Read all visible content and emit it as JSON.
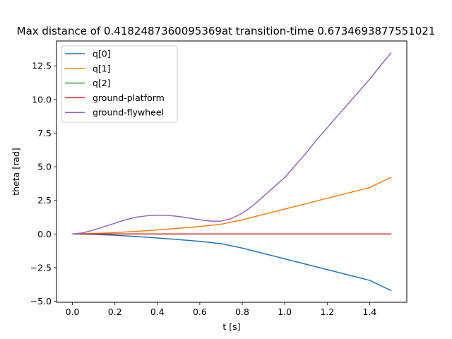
{
  "chart_data": {
    "type": "line",
    "title": "Max distance of 0.4182487360095369at transition-time 0.6734693877551021",
    "xlabel": "t [s]",
    "ylabel": "theta [rad]",
    "xlim": [
      -0.075,
      1.575
    ],
    "ylim": [
      -5.08,
      14.35
    ],
    "xticks": [
      0.0,
      0.2,
      0.4,
      0.6,
      0.8,
      1.0,
      1.2,
      1.4
    ],
    "xtick_labels": [
      "0.0",
      "0.2",
      "0.4",
      "0.6",
      "0.8",
      "1.0",
      "1.2",
      "1.4"
    ],
    "yticks": [
      -5.0,
      -2.5,
      0.0,
      2.5,
      5.0,
      7.5,
      10.0,
      12.5
    ],
    "ytick_labels": [
      "−5.0",
      "−2.5",
      "0.0",
      "2.5",
      "5.0",
      "7.5",
      "10.0",
      "12.5"
    ],
    "grid": false,
    "legend_position": "top-left",
    "series": [
      {
        "name": "q[0]",
        "color": "#1f77b4",
        "x": [
          0.0,
          0.1,
          0.2,
          0.3,
          0.4,
          0.5,
          0.6,
          0.7,
          0.8,
          0.9,
          1.0,
          1.1,
          1.2,
          1.3,
          1.4,
          1.5
        ],
        "y": [
          0.0,
          -0.03,
          -0.1,
          -0.19,
          -0.3,
          -0.42,
          -0.55,
          -0.72,
          -1.05,
          -1.45,
          -1.85,
          -2.25,
          -2.65,
          -3.05,
          -3.45,
          -4.2
        ]
      },
      {
        "name": "q[1]",
        "color": "#ff7f0e",
        "x": [
          0.0,
          0.1,
          0.2,
          0.3,
          0.4,
          0.5,
          0.6,
          0.7,
          0.8,
          0.9,
          1.0,
          1.1,
          1.2,
          1.3,
          1.4,
          1.5
        ],
        "y": [
          0.0,
          0.03,
          0.1,
          0.19,
          0.3,
          0.42,
          0.55,
          0.72,
          1.05,
          1.45,
          1.85,
          2.25,
          2.65,
          3.05,
          3.45,
          4.2
        ]
      },
      {
        "name": "q[2]",
        "color": "#2ca02c",
        "x": [
          0.0,
          0.5,
          1.0,
          1.5
        ],
        "y": [
          0.0,
          0.0,
          0.0,
          0.0
        ]
      },
      {
        "name": "ground-platform",
        "color": "#d62728",
        "x": [
          0.0,
          0.5,
          1.0,
          1.5
        ],
        "y": [
          0.0,
          0.0,
          0.0,
          0.0
        ]
      },
      {
        "name": "ground-flywheel",
        "color": "#9467bd",
        "x": [
          0.0,
          0.05,
          0.1,
          0.15,
          0.2,
          0.25,
          0.3,
          0.35,
          0.4,
          0.45,
          0.5,
          0.55,
          0.6,
          0.65,
          0.7,
          0.75,
          0.8,
          0.85,
          0.9,
          0.95,
          1.0,
          1.05,
          1.1,
          1.15,
          1.2,
          1.25,
          1.3,
          1.35,
          1.4,
          1.45,
          1.5
        ],
        "y": [
          0.0,
          0.08,
          0.3,
          0.55,
          0.8,
          1.05,
          1.25,
          1.35,
          1.4,
          1.38,
          1.3,
          1.18,
          1.05,
          0.95,
          0.95,
          1.15,
          1.55,
          2.1,
          2.8,
          3.5,
          4.2,
          5.1,
          6.0,
          7.0,
          7.9,
          8.8,
          9.7,
          10.6,
          11.5,
          12.5,
          13.45
        ]
      }
    ]
  }
}
